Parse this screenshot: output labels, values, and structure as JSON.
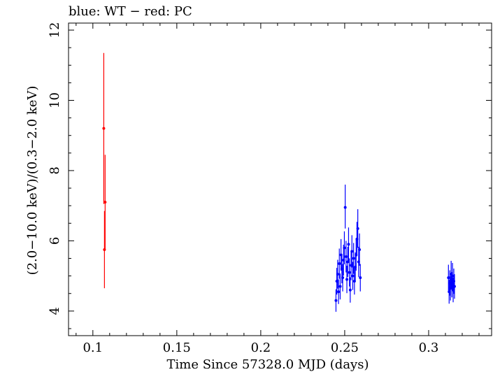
{
  "chart_data": {
    "type": "scatter",
    "title": "blue: WT − red: PC",
    "xlabel": "Time Since 57328.0 MJD (days)",
    "ylabel": "(2.0−10.0 keV)/(0.3−2.0 keV)",
    "xlim": [
      0.0855,
      0.3375
    ],
    "ylim": [
      3.3,
      12.2
    ],
    "x_ticks": [
      0.1,
      0.15,
      0.2,
      0.25,
      0.3
    ],
    "x_tick_labels": [
      "0.1",
      "0.15",
      "0.2",
      "0.25",
      "0.3"
    ],
    "y_ticks": [
      4,
      6,
      8,
      10,
      12
    ],
    "y_tick_labels": [
      "4",
      "6",
      "8",
      "10",
      "12"
    ],
    "grid": false,
    "legend": "none",
    "series": [
      {
        "name": "PC",
        "color": "#ff0000",
        "points": [
          {
            "x": 0.1065,
            "y": 9.2,
            "lo": 7.05,
            "hi": 11.35
          },
          {
            "x": 0.1073,
            "y": 7.1,
            "lo": 5.75,
            "hi": 8.45
          },
          {
            "x": 0.1069,
            "y": 5.75,
            "lo": 4.65,
            "hi": 6.85
          }
        ]
      },
      {
        "name": "WT",
        "color": "#0000ff",
        "points": [
          {
            "x": 0.2448,
            "y": 4.3,
            "lo": 3.98,
            "hi": 4.62
          },
          {
            "x": 0.2453,
            "y": 4.85,
            "lo": 4.47,
            "hi": 5.23
          },
          {
            "x": 0.2458,
            "y": 5.05,
            "lo": 4.64,
            "hi": 5.46
          },
          {
            "x": 0.2463,
            "y": 4.55,
            "lo": 4.2,
            "hi": 4.9
          },
          {
            "x": 0.2468,
            "y": 5.35,
            "lo": 4.92,
            "hi": 5.78
          },
          {
            "x": 0.2473,
            "y": 4.7,
            "lo": 4.33,
            "hi": 5.07
          },
          {
            "x": 0.2478,
            "y": 5.6,
            "lo": 5.15,
            "hi": 6.05
          },
          {
            "x": 0.2483,
            "y": 5.2,
            "lo": 4.79,
            "hi": 5.61
          },
          {
            "x": 0.2488,
            "y": 4.95,
            "lo": 4.56,
            "hi": 5.34
          },
          {
            "x": 0.2493,
            "y": 5.45,
            "lo": 5.01,
            "hi": 5.89
          },
          {
            "x": 0.2498,
            "y": 5.8,
            "lo": 5.33,
            "hi": 6.27
          },
          {
            "x": 0.2503,
            "y": 6.95,
            "lo": 6.35,
            "hi": 7.6
          },
          {
            "x": 0.2508,
            "y": 5.55,
            "lo": 5.1,
            "hi": 6.0
          },
          {
            "x": 0.2513,
            "y": 4.9,
            "lo": 4.51,
            "hi": 5.29
          },
          {
            "x": 0.2518,
            "y": 5.4,
            "lo": 4.97,
            "hi": 5.83
          },
          {
            "x": 0.2523,
            "y": 5.9,
            "lo": 5.42,
            "hi": 6.38
          },
          {
            "x": 0.2528,
            "y": 5.1,
            "lo": 4.7,
            "hi": 5.5
          },
          {
            "x": 0.2533,
            "y": 4.6,
            "lo": 4.24,
            "hi": 4.96
          },
          {
            "x": 0.2538,
            "y": 5.3,
            "lo": 4.88,
            "hi": 5.72
          },
          {
            "x": 0.2543,
            "y": 5.7,
            "lo": 5.24,
            "hi": 6.16
          },
          {
            "x": 0.2548,
            "y": 5.0,
            "lo": 4.6,
            "hi": 5.4
          },
          {
            "x": 0.2553,
            "y": 5.5,
            "lo": 5.06,
            "hi": 5.94
          },
          {
            "x": 0.2558,
            "y": 4.85,
            "lo": 4.47,
            "hi": 5.23
          },
          {
            "x": 0.2563,
            "y": 5.25,
            "lo": 4.83,
            "hi": 5.67
          },
          {
            "x": 0.2568,
            "y": 5.6,
            "lo": 5.15,
            "hi": 6.05
          },
          {
            "x": 0.2573,
            "y": 6.05,
            "lo": 5.56,
            "hi": 6.54
          },
          {
            "x": 0.2578,
            "y": 6.35,
            "lo": 5.8,
            "hi": 6.9
          },
          {
            "x": 0.2583,
            "y": 5.4,
            "lo": 4.97,
            "hi": 5.83
          },
          {
            "x": 0.2588,
            "y": 5.75,
            "lo": 5.29,
            "hi": 6.21
          },
          {
            "x": 0.2593,
            "y": 4.95,
            "lo": 4.56,
            "hi": 5.34
          },
          {
            "x": 0.3118,
            "y": 4.95,
            "lo": 4.58,
            "hi": 5.32
          },
          {
            "x": 0.3122,
            "y": 4.55,
            "lo": 4.21,
            "hi": 4.89
          },
          {
            "x": 0.3126,
            "y": 4.8,
            "lo": 4.44,
            "hi": 5.16
          },
          {
            "x": 0.313,
            "y": 4.65,
            "lo": 4.3,
            "hi": 5.0
          },
          {
            "x": 0.3134,
            "y": 5.05,
            "lo": 4.67,
            "hi": 5.43
          },
          {
            "x": 0.3138,
            "y": 4.75,
            "lo": 4.39,
            "hi": 5.11
          },
          {
            "x": 0.3142,
            "y": 5.0,
            "lo": 4.63,
            "hi": 5.37
          },
          {
            "x": 0.3146,
            "y": 4.6,
            "lo": 4.25,
            "hi": 4.95
          },
          {
            "x": 0.315,
            "y": 4.85,
            "lo": 4.49,
            "hi": 5.21
          },
          {
            "x": 0.3154,
            "y": 4.7,
            "lo": 4.35,
            "hi": 5.05
          }
        ]
      }
    ]
  }
}
